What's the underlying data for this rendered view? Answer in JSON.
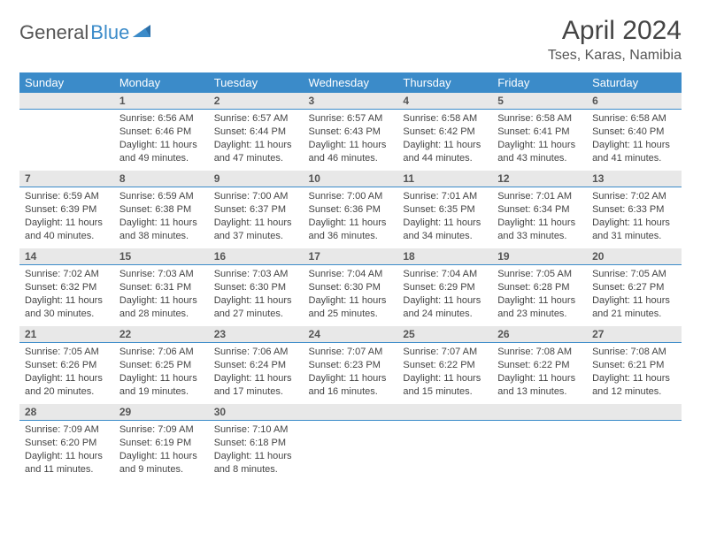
{
  "logo": {
    "part1": "General",
    "part2": "Blue"
  },
  "title": "April 2024",
  "location": "Tses, Karas, Namibia",
  "colors": {
    "header_bg": "#3b8bc9",
    "header_text": "#ffffff",
    "daynum_bg": "#e8e8e8",
    "daynum_border": "#3b8bc9",
    "body_text": "#444444",
    "page_bg": "#ffffff",
    "logo_gray": "#555555",
    "logo_blue": "#3b8bc9"
  },
  "day_headers": [
    "Sunday",
    "Monday",
    "Tuesday",
    "Wednesday",
    "Thursday",
    "Friday",
    "Saturday"
  ],
  "weeks": [
    [
      null,
      {
        "n": "1",
        "sr": "Sunrise: 6:56 AM",
        "ss": "Sunset: 6:46 PM",
        "dl": "Daylight: 11 hours and 49 minutes."
      },
      {
        "n": "2",
        "sr": "Sunrise: 6:57 AM",
        "ss": "Sunset: 6:44 PM",
        "dl": "Daylight: 11 hours and 47 minutes."
      },
      {
        "n": "3",
        "sr": "Sunrise: 6:57 AM",
        "ss": "Sunset: 6:43 PM",
        "dl": "Daylight: 11 hours and 46 minutes."
      },
      {
        "n": "4",
        "sr": "Sunrise: 6:58 AM",
        "ss": "Sunset: 6:42 PM",
        "dl": "Daylight: 11 hours and 44 minutes."
      },
      {
        "n": "5",
        "sr": "Sunrise: 6:58 AM",
        "ss": "Sunset: 6:41 PM",
        "dl": "Daylight: 11 hours and 43 minutes."
      },
      {
        "n": "6",
        "sr": "Sunrise: 6:58 AM",
        "ss": "Sunset: 6:40 PM",
        "dl": "Daylight: 11 hours and 41 minutes."
      }
    ],
    [
      {
        "n": "7",
        "sr": "Sunrise: 6:59 AM",
        "ss": "Sunset: 6:39 PM",
        "dl": "Daylight: 11 hours and 40 minutes."
      },
      {
        "n": "8",
        "sr": "Sunrise: 6:59 AM",
        "ss": "Sunset: 6:38 PM",
        "dl": "Daylight: 11 hours and 38 minutes."
      },
      {
        "n": "9",
        "sr": "Sunrise: 7:00 AM",
        "ss": "Sunset: 6:37 PM",
        "dl": "Daylight: 11 hours and 37 minutes."
      },
      {
        "n": "10",
        "sr": "Sunrise: 7:00 AM",
        "ss": "Sunset: 6:36 PM",
        "dl": "Daylight: 11 hours and 36 minutes."
      },
      {
        "n": "11",
        "sr": "Sunrise: 7:01 AM",
        "ss": "Sunset: 6:35 PM",
        "dl": "Daylight: 11 hours and 34 minutes."
      },
      {
        "n": "12",
        "sr": "Sunrise: 7:01 AM",
        "ss": "Sunset: 6:34 PM",
        "dl": "Daylight: 11 hours and 33 minutes."
      },
      {
        "n": "13",
        "sr": "Sunrise: 7:02 AM",
        "ss": "Sunset: 6:33 PM",
        "dl": "Daylight: 11 hours and 31 minutes."
      }
    ],
    [
      {
        "n": "14",
        "sr": "Sunrise: 7:02 AM",
        "ss": "Sunset: 6:32 PM",
        "dl": "Daylight: 11 hours and 30 minutes."
      },
      {
        "n": "15",
        "sr": "Sunrise: 7:03 AM",
        "ss": "Sunset: 6:31 PM",
        "dl": "Daylight: 11 hours and 28 minutes."
      },
      {
        "n": "16",
        "sr": "Sunrise: 7:03 AM",
        "ss": "Sunset: 6:30 PM",
        "dl": "Daylight: 11 hours and 27 minutes."
      },
      {
        "n": "17",
        "sr": "Sunrise: 7:04 AM",
        "ss": "Sunset: 6:30 PM",
        "dl": "Daylight: 11 hours and 25 minutes."
      },
      {
        "n": "18",
        "sr": "Sunrise: 7:04 AM",
        "ss": "Sunset: 6:29 PM",
        "dl": "Daylight: 11 hours and 24 minutes."
      },
      {
        "n": "19",
        "sr": "Sunrise: 7:05 AM",
        "ss": "Sunset: 6:28 PM",
        "dl": "Daylight: 11 hours and 23 minutes."
      },
      {
        "n": "20",
        "sr": "Sunrise: 7:05 AM",
        "ss": "Sunset: 6:27 PM",
        "dl": "Daylight: 11 hours and 21 minutes."
      }
    ],
    [
      {
        "n": "21",
        "sr": "Sunrise: 7:05 AM",
        "ss": "Sunset: 6:26 PM",
        "dl": "Daylight: 11 hours and 20 minutes."
      },
      {
        "n": "22",
        "sr": "Sunrise: 7:06 AM",
        "ss": "Sunset: 6:25 PM",
        "dl": "Daylight: 11 hours and 19 minutes."
      },
      {
        "n": "23",
        "sr": "Sunrise: 7:06 AM",
        "ss": "Sunset: 6:24 PM",
        "dl": "Daylight: 11 hours and 17 minutes."
      },
      {
        "n": "24",
        "sr": "Sunrise: 7:07 AM",
        "ss": "Sunset: 6:23 PM",
        "dl": "Daylight: 11 hours and 16 minutes."
      },
      {
        "n": "25",
        "sr": "Sunrise: 7:07 AM",
        "ss": "Sunset: 6:22 PM",
        "dl": "Daylight: 11 hours and 15 minutes."
      },
      {
        "n": "26",
        "sr": "Sunrise: 7:08 AM",
        "ss": "Sunset: 6:22 PM",
        "dl": "Daylight: 11 hours and 13 minutes."
      },
      {
        "n": "27",
        "sr": "Sunrise: 7:08 AM",
        "ss": "Sunset: 6:21 PM",
        "dl": "Daylight: 11 hours and 12 minutes."
      }
    ],
    [
      {
        "n": "28",
        "sr": "Sunrise: 7:09 AM",
        "ss": "Sunset: 6:20 PM",
        "dl": "Daylight: 11 hours and 11 minutes."
      },
      {
        "n": "29",
        "sr": "Sunrise: 7:09 AM",
        "ss": "Sunset: 6:19 PM",
        "dl": "Daylight: 11 hours and 9 minutes."
      },
      {
        "n": "30",
        "sr": "Sunrise: 7:10 AM",
        "ss": "Sunset: 6:18 PM",
        "dl": "Daylight: 11 hours and 8 minutes."
      },
      null,
      null,
      null,
      null
    ]
  ]
}
